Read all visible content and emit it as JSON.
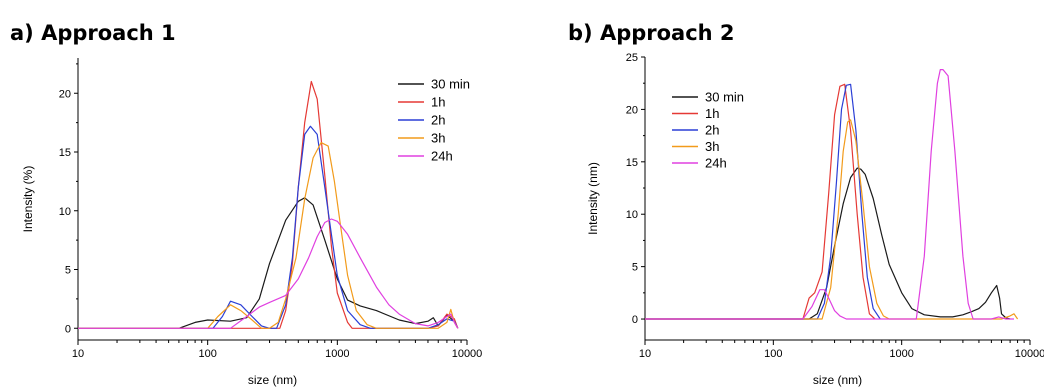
{
  "panels": [
    {
      "id": "a",
      "title": "a) Approach 1"
    },
    {
      "id": "b",
      "title": "b) Approach 2"
    }
  ],
  "colors": {
    "30 min": "#1a1a1a",
    "1h": "#e53935",
    "2h": "#2b3fd6",
    "3h": "#f29b1b",
    "24h": "#e040e0"
  },
  "chart_data": [
    {
      "type": "line",
      "title": "a) Approach 1",
      "xlabel": "size (nm)",
      "ylabel": "Intensity (%)",
      "xscale": "log",
      "xlim": [
        10,
        10000
      ],
      "ylim": [
        -1,
        23
      ],
      "xticks": [
        10,
        100,
        1000,
        10000
      ],
      "xtick_labels": [
        "10",
        "100",
        "1000",
        "10000"
      ],
      "yticks": [
        0,
        5,
        10,
        15,
        20
      ],
      "ytick_labels": [
        "0",
        "5",
        "10",
        "15",
        "20"
      ],
      "grid": false,
      "legend_position": "top-right",
      "series": [
        {
          "name": "30 min",
          "x": [
            10,
            60,
            80,
            100,
            150,
            200,
            250,
            300,
            400,
            500,
            560,
            650,
            800,
            1000,
            1200,
            1500,
            2000,
            3000,
            4000,
            5000,
            5500,
            6000,
            7000,
            8000,
            8500
          ],
          "y": [
            0,
            0,
            0.5,
            0.7,
            0.6,
            0.9,
            2.5,
            5.5,
            9.2,
            10.8,
            11.1,
            10.5,
            7.5,
            4.2,
            2.4,
            1.9,
            1.5,
            0.7,
            0.4,
            0.6,
            0.9,
            0.2,
            1.1,
            0.6,
            0
          ]
        },
        {
          "name": "1h",
          "x": [
            10,
            360,
            400,
            450,
            500,
            560,
            630,
            700,
            800,
            900,
            1000,
            1200,
            1300,
            5000,
            6000,
            7000,
            8000,
            8500
          ],
          "y": [
            0,
            0,
            1.5,
            5.5,
            12,
            17.5,
            21,
            19.5,
            13,
            7,
            3,
            0.5,
            0,
            0,
            0.2,
            1.2,
            0.8,
            0
          ]
        },
        {
          "name": "2h",
          "x": [
            10,
            110,
            130,
            150,
            180,
            220,
            260,
            300,
            340,
            400,
            450,
            500,
            560,
            620,
            700,
            800,
            900,
            1000,
            1200,
            1500,
            1800,
            5000,
            6000,
            7000,
            8000,
            8500
          ],
          "y": [
            0,
            0,
            1.0,
            2.3,
            2.0,
            1.0,
            0.2,
            0,
            0,
            2,
            6,
            12,
            16.5,
            17.2,
            16.5,
            12,
            8,
            4.5,
            1.5,
            0.3,
            0,
            0,
            0.3,
            0.8,
            0.6,
            0
          ]
        },
        {
          "name": "3h",
          "x": [
            10,
            100,
            120,
            150,
            180,
            220,
            260,
            300,
            350,
            400,
            480,
            560,
            650,
            750,
            850,
            950,
            1050,
            1200,
            1400,
            1700,
            2000,
            6000,
            7000,
            7500,
            8000,
            8500
          ],
          "y": [
            0,
            0,
            1.0,
            2.0,
            1.5,
            0.7,
            0,
            0,
            0.5,
            2.5,
            6,
            11,
            14.5,
            15.8,
            15.5,
            12.5,
            9,
            4.5,
            1.5,
            0.3,
            0,
            0,
            0.5,
            1.6,
            0.5,
            0
          ]
        },
        {
          "name": "24h",
          "x": [
            10,
            150,
            200,
            250,
            300,
            400,
            500,
            600,
            700,
            800,
            900,
            1000,
            1200,
            1500,
            2000,
            2500,
            3000,
            4000,
            5000,
            6000,
            7000,
            7500,
            8000,
            8500
          ],
          "y": [
            0,
            0,
            1.0,
            1.8,
            2.2,
            2.8,
            4.2,
            6,
            7.8,
            9,
            9.3,
            9.1,
            8,
            6,
            3.5,
            2,
            1.2,
            0.4,
            0.2,
            0.5,
            1.0,
            1.2,
            0.5,
            0
          ]
        }
      ]
    },
    {
      "type": "line",
      "title": "b) Approach 2",
      "xlabel": "size (nm)",
      "ylabel": "Intensity (nm)",
      "xscale": "log",
      "xlim": [
        10,
        10000
      ],
      "ylim": [
        -2,
        25
      ],
      "xticks": [
        10,
        100,
        1000,
        10000
      ],
      "xtick_labels": [
        "10",
        "100",
        "1000",
        "10000"
      ],
      "yticks": [
        0,
        5,
        10,
        15,
        20,
        25
      ],
      "ytick_labels": [
        "0",
        "5",
        "10",
        "15",
        "20",
        "25"
      ],
      "grid": false,
      "legend_position": "top-right",
      "series": [
        {
          "name": "30 min",
          "x": [
            10,
            190,
            220,
            260,
            300,
            350,
            400,
            450,
            480,
            520,
            600,
            700,
            800,
            1000,
            1200,
            1500,
            2000,
            2500,
            3000,
            3500,
            4000,
            4500,
            5000,
            5500,
            5800,
            6000,
            6500,
            7000
          ],
          "y": [
            0,
            0,
            0.5,
            3.0,
            7.0,
            11.0,
            13.5,
            14.4,
            14.3,
            13.8,
            11.5,
            8.0,
            5.2,
            2.5,
            1.0,
            0.4,
            0.2,
            0.2,
            0.4,
            0.7,
            1.0,
            1.6,
            2.5,
            3.2,
            2.0,
            0.5,
            0.1,
            0
          ]
        },
        {
          "name": "1h",
          "x": [
            10,
            170,
            190,
            210,
            240,
            270,
            300,
            330,
            360,
            400,
            450,
            500,
            560,
            620
          ],
          "y": [
            0,
            0,
            2.0,
            2.5,
            4.5,
            12.0,
            19.5,
            22.2,
            22.4,
            18.0,
            10.0,
            4.0,
            0.5,
            0
          ]
        },
        {
          "name": "2h",
          "x": [
            10,
            220,
            250,
            280,
            310,
            340,
            370,
            400,
            440,
            490,
            540,
            600,
            680
          ],
          "y": [
            0,
            0,
            1.5,
            6.0,
            13.0,
            20.0,
            22.3,
            22.4,
            18.0,
            10.0,
            4.0,
            1.0,
            0
          ]
        },
        {
          "name": "3h",
          "x": [
            10,
            240,
            280,
            320,
            350,
            380,
            400,
            440,
            500,
            560,
            640,
            720,
            800,
            6000,
            7000,
            7500,
            8000
          ],
          "y": [
            0,
            0,
            3.0,
            10.0,
            16.0,
            18.8,
            19.0,
            17.0,
            11.0,
            5.0,
            1.5,
            0.3,
            0,
            0,
            0.3,
            0.5,
            0
          ]
        },
        {
          "name": "24h",
          "x": [
            10,
            170,
            200,
            230,
            250,
            270,
            300,
            330,
            370,
            1300,
            1500,
            1700,
            1900,
            2000,
            2100,
            2300,
            2600,
            3000,
            3300,
            3600,
            4200,
            5000,
            5700,
            6500,
            7500
          ],
          "y": [
            0,
            0,
            1.2,
            2.8,
            2.8,
            2.0,
            0.8,
            0.3,
            0,
            0,
            6.0,
            16.0,
            22.5,
            23.8,
            23.8,
            23.2,
            16.0,
            6.0,
            1.5,
            0,
            0,
            0,
            0.2,
            0,
            0
          ]
        }
      ]
    }
  ]
}
